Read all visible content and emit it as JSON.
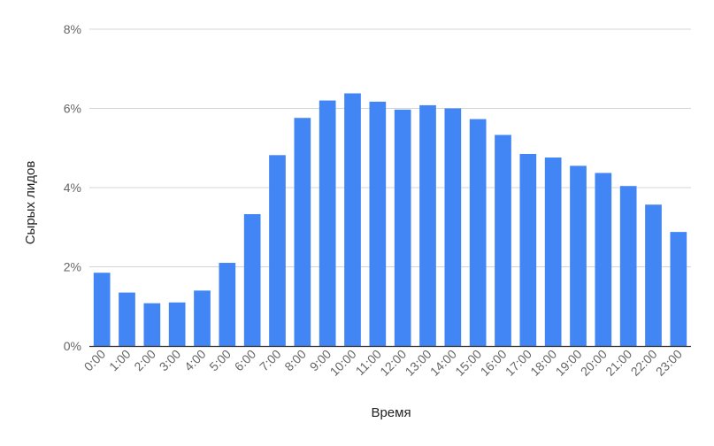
{
  "chart_data": {
    "type": "bar",
    "title": "",
    "xlabel": "Время",
    "ylabel": "Сырых лидов",
    "categories": [
      "0:00",
      "1:00",
      "2:00",
      "3:00",
      "4:00",
      "5:00",
      "6:00",
      "7:00",
      "8:00",
      "9:00",
      "10:00",
      "11:00",
      "12:00",
      "13:00",
      "14:00",
      "15:00",
      "16:00",
      "17:00",
      "18:00",
      "19:00",
      "20:00",
      "21:00",
      "22:00",
      "23:00"
    ],
    "values": [
      1.85,
      1.35,
      1.08,
      1.1,
      1.4,
      2.1,
      3.33,
      4.82,
      5.76,
      6.2,
      6.38,
      6.17,
      5.97,
      6.08,
      6.0,
      5.73,
      5.33,
      4.85,
      4.76,
      4.55,
      4.37,
      4.04,
      3.57,
      2.88
    ],
    "unit": "%",
    "ylim": [
      0,
      8
    ],
    "yticks": [
      "0%",
      "2%",
      "4%",
      "6%",
      "8%"
    ],
    "grid": true,
    "colors": {
      "bar": "#4285f4",
      "grid": "#d4d4d4",
      "axis": "#333333",
      "text": "#666666",
      "axis_title": "#222222"
    }
  }
}
